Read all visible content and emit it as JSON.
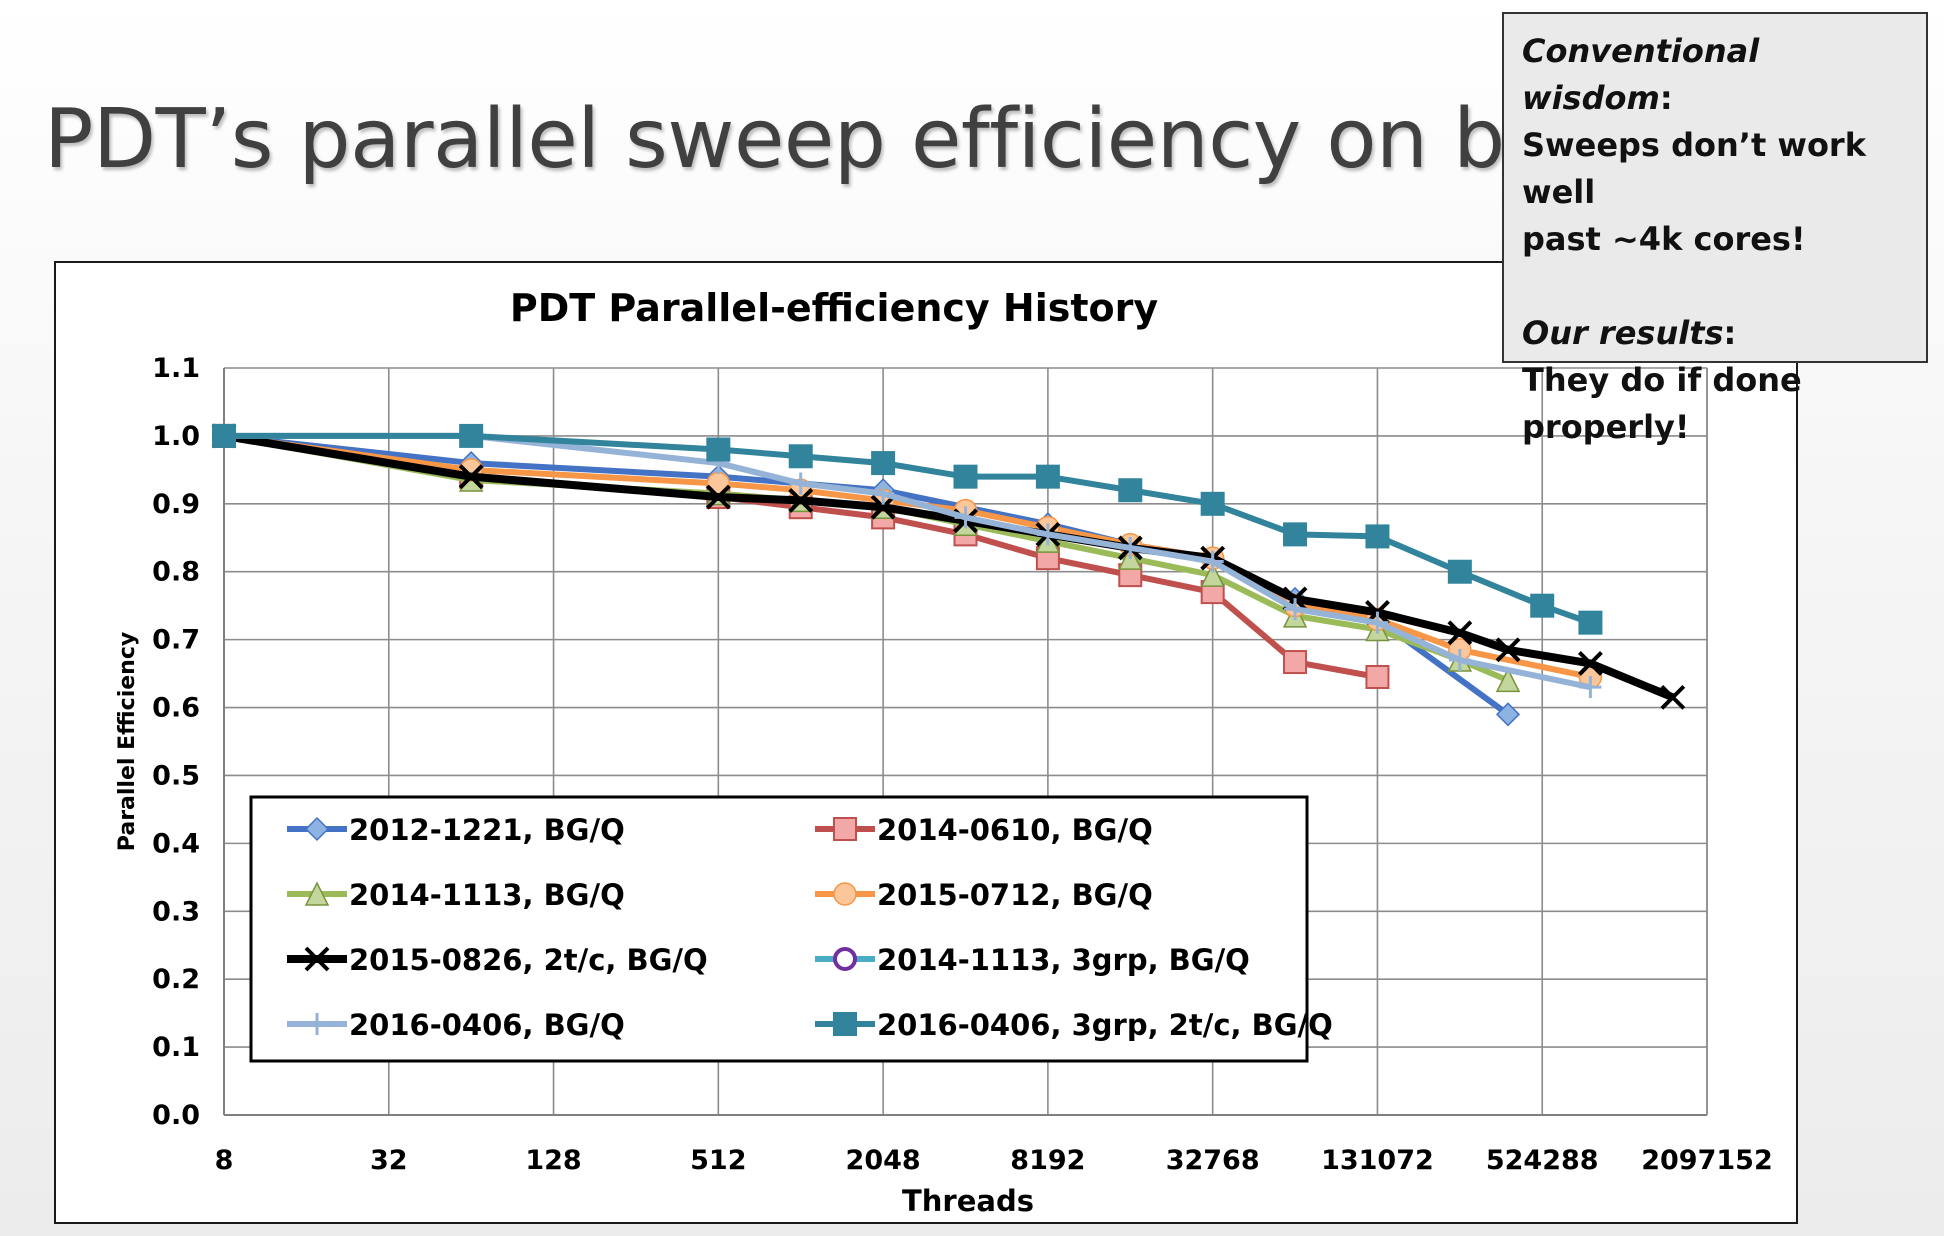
{
  "slide": {
    "title": "PDT’s parallel sweep efficiency on bricks"
  },
  "callout": {
    "heading1": "Conventional wisdom",
    "line1": "Sweeps don’t work well",
    "line2": "past ~4k cores!",
    "heading2": "Our results",
    "line3": "They do if done",
    "line4": "properly!"
  },
  "chart_data": {
    "type": "line",
    "title": "PDT Parallel-efficiency History",
    "xlabel": "Threads",
    "ylabel": "Parallel Efficiency",
    "x_scale": "log2",
    "x_ticks": [
      8,
      32,
      128,
      512,
      2048,
      8192,
      32768,
      131072,
      524288,
      2097152
    ],
    "xlim": [
      8,
      2097152
    ],
    "ylim": [
      0,
      1.1
    ],
    "y_ticks": [
      "0.0",
      "0.1",
      "0.2",
      "0.3",
      "0.4",
      "0.5",
      "0.6",
      "0.7",
      "0.8",
      "0.9",
      "1.0",
      "1.1"
    ],
    "grid": true,
    "legend_position": "lower-left, inside plot, two columns",
    "series": [
      {
        "name": "2012-1221, BG/Q",
        "color": "#4472C4",
        "marker": "diamond",
        "x": [
          8,
          64,
          512,
          2048,
          8192,
          16384,
          32768,
          65536,
          131072,
          393216
        ],
        "y": [
          1.0,
          0.96,
          0.94,
          0.92,
          0.87,
          0.84,
          0.82,
          0.76,
          0.73,
          0.59
        ]
      },
      {
        "name": "2014-0610, BG/Q",
        "color": "#C0504D",
        "marker": "square",
        "x": [
          8,
          64,
          512,
          1024,
          2048,
          4096,
          8192,
          16384,
          32768,
          65536,
          131072
        ],
        "y": [
          1.0,
          0.94,
          0.91,
          0.895,
          0.88,
          0.855,
          0.82,
          0.795,
          0.77,
          0.667,
          0.645
        ]
      },
      {
        "name": "2014-1113, BG/Q",
        "color": "#9BBB59",
        "marker": "triangle",
        "x": [
          8,
          64,
          512,
          1024,
          2048,
          4096,
          8192,
          16384,
          32768,
          65536,
          131072,
          262144,
          393216
        ],
        "y": [
          1.0,
          0.935,
          0.915,
          0.905,
          0.895,
          0.87,
          0.845,
          0.82,
          0.795,
          0.735,
          0.715,
          0.67,
          0.64
        ]
      },
      {
        "name": "2015-0712, BG/Q",
        "color": "#F79646",
        "marker": "circle",
        "x": [
          8,
          64,
          512,
          1024,
          2048,
          4096,
          8192,
          16384,
          32768,
          65536,
          131072,
          262144,
          786432
        ],
        "y": [
          1.0,
          0.95,
          0.93,
          0.92,
          0.905,
          0.89,
          0.865,
          0.84,
          0.82,
          0.75,
          0.73,
          0.685,
          0.645
        ]
      },
      {
        "name": "2015-0826, 2t/c, BG/Q",
        "color": "#000000",
        "marker": "x",
        "x": [
          8,
          64,
          512,
          1024,
          2048,
          4096,
          8192,
          16384,
          32768,
          65536,
          131072,
          262144,
          393216,
          786432,
          1572864
        ],
        "y": [
          1.0,
          0.94,
          0.91,
          0.905,
          0.895,
          0.875,
          0.855,
          0.835,
          0.82,
          0.76,
          0.74,
          0.71,
          0.685,
          0.665,
          0.615
        ]
      },
      {
        "name": "2014-1113, 3grp, BG/Q",
        "color": "#4BACC6",
        "marker": "ring",
        "x": [],
        "y": []
      },
      {
        "name": "2016-0406, BG/Q",
        "color": "#95B3D7",
        "marker": "plus",
        "x": [
          8,
          64,
          512,
          1024,
          2048,
          4096,
          8192,
          16384,
          32768,
          65536,
          131072,
          262144,
          786432
        ],
        "y": [
          1.0,
          1.0,
          0.96,
          0.93,
          0.915,
          0.88,
          0.855,
          0.835,
          0.815,
          0.745,
          0.725,
          0.67,
          0.63
        ]
      },
      {
        "name": "2016-0406, 3grp, 2t/c, BG/Q",
        "color": "#31849B",
        "marker": "square",
        "x": [
          8,
          64,
          512,
          1024,
          2048,
          4096,
          8192,
          16384,
          32768,
          65536,
          131072,
          262144,
          524288,
          786432
        ],
        "y": [
          1.0,
          1.0,
          0.98,
          0.97,
          0.96,
          0.94,
          0.94,
          0.92,
          0.9,
          0.855,
          0.852,
          0.8,
          0.75,
          0.725
        ]
      }
    ]
  }
}
